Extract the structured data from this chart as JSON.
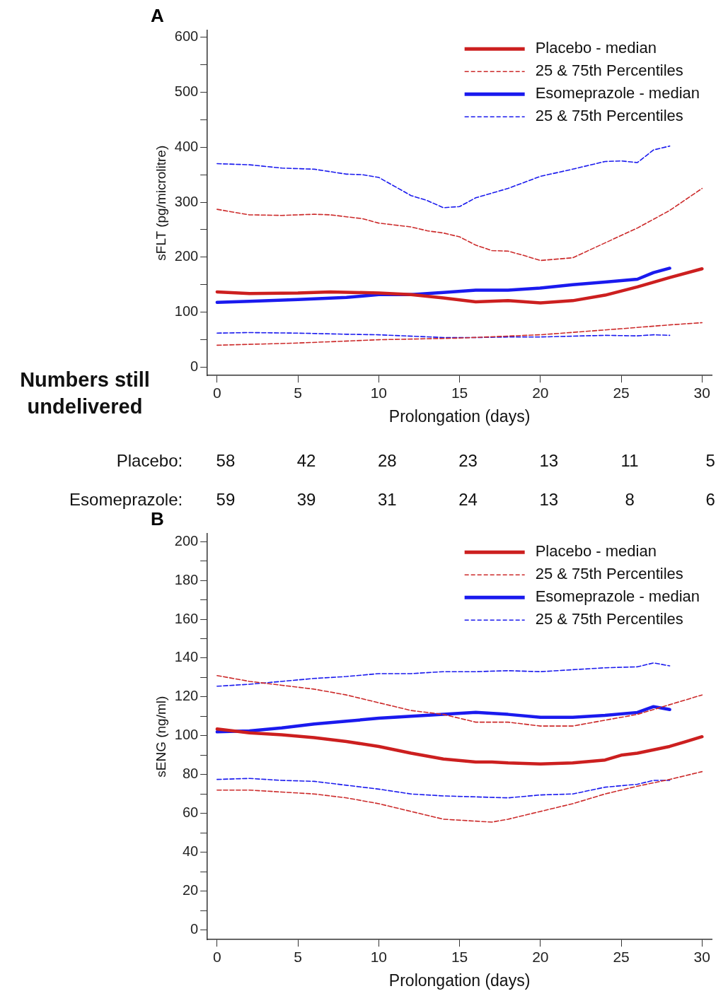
{
  "chart_data": [
    {
      "type": "line",
      "title": "A",
      "xlabel": "Prolongation (days)",
      "ylabel": "sFLT (pg/microlitre)",
      "xlim": [
        -0.6,
        30.6
      ],
      "ylim": [
        -15,
        612
      ],
      "xticks": [
        0,
        5,
        10,
        15,
        20,
        25,
        30
      ],
      "yticks": [
        0,
        {
          "value": 50,
          "label": null
        },
        100,
        {
          "value": 150,
          "label": null
        },
        200,
        {
          "value": 250,
          "label": null
        },
        300,
        {
          "value": 350,
          "label": null
        },
        400,
        {
          "value": 450,
          "label": null
        },
        500,
        {
          "value": 550,
          "label": null
        },
        600
      ],
      "grid": false,
      "legend": "top right",
      "marker": "none",
      "annotations": [
        "Numbers still undelivered",
        "Placebo:",
        "58",
        "42",
        "28",
        "23",
        "13",
        "11",
        "5",
        "Esomeprazole:",
        "59",
        "39",
        "31",
        "24",
        "13",
        "8",
        "6"
      ],
      "series": [
        {
          "name": "Placebo - median",
          "color": "#cc1f1f",
          "line_style": "solid",
          "x": [
            0,
            2,
            5,
            7,
            10,
            12,
            14,
            16,
            18,
            20,
            22,
            24,
            26,
            28,
            30
          ],
          "values": [
            137,
            134,
            135,
            137,
            135,
            132,
            126,
            119,
            121,
            117,
            121,
            131,
            146,
            163,
            179
          ]
        },
        {
          "name": "25 & 75th Percentiles",
          "color": "#cc2a2a",
          "line_style": "dashed",
          "x": [
            0,
            2,
            4,
            6,
            7,
            9,
            10,
            12,
            13,
            14,
            15,
            16,
            17,
            18,
            19,
            20,
            22,
            24,
            26,
            28,
            29,
            30
          ],
          "values": [
            287,
            277,
            276,
            278,
            277,
            270,
            262,
            255,
            248,
            244,
            237,
            222,
            212,
            211,
            203,
            194,
            199,
            226,
            253,
            285,
            305,
            325
          ]
        },
        {
          "color": "#cc2a2a",
          "line_style": "dashed",
          "x": [
            0,
            5,
            10,
            15,
            20,
            25,
            28,
            30
          ],
          "values": [
            40,
            44,
            50,
            53,
            59,
            70,
            77,
            81
          ]
        },
        {
          "name": "Esomeprazole - median",
          "color": "#1a1aee",
          "line_style": "solid",
          "x": [
            0,
            2,
            5,
            8,
            10,
            12,
            14,
            16,
            18,
            20,
            22,
            24,
            26,
            27,
            28
          ],
          "values": [
            118,
            120,
            123,
            127,
            132,
            132,
            136,
            140,
            140,
            144,
            150,
            155,
            160,
            172,
            180
          ]
        },
        {
          "name": "25 & 75th Percentiles",
          "color": "#1a1aee",
          "line_style": "dashed",
          "x": [
            0,
            2,
            4,
            6,
            8,
            9,
            10,
            12,
            13,
            14,
            15,
            16,
            18,
            20,
            22,
            24,
            25,
            26,
            27,
            28
          ],
          "values": [
            370,
            368,
            362,
            360,
            351,
            350,
            345,
            312,
            303,
            290,
            292,
            308,
            325,
            347,
            360,
            374,
            375,
            372,
            395,
            402
          ]
        },
        {
          "color": "#1a1aee",
          "line_style": "dashed",
          "x": [
            0,
            2,
            5,
            8,
            10,
            14,
            16,
            18,
            20,
            24,
            26,
            27,
            28
          ],
          "values": [
            62,
            63,
            62,
            60,
            59,
            54,
            54,
            55,
            55,
            58,
            57,
            59,
            58
          ]
        }
      ]
    },
    {
      "type": "line",
      "title": "B",
      "xlabel": "Prolongation (days)",
      "ylabel": "sENG (ng/ml)",
      "xlim": [
        -0.6,
        30.6
      ],
      "ylim": [
        -5,
        204
      ],
      "xticks": [
        0,
        5,
        10,
        15,
        20,
        25,
        30
      ],
      "yticks": [
        0,
        {
          "value": 10,
          "label": null
        },
        20,
        {
          "value": 30,
          "label": null
        },
        40,
        {
          "value": 50,
          "label": null
        },
        60,
        {
          "value": 70,
          "label": null
        },
        80,
        {
          "value": 90,
          "label": null
        },
        100,
        {
          "value": 110,
          "label": null
        },
        120,
        {
          "value": 130,
          "label": null
        },
        140,
        {
          "value": 150,
          "label": null
        },
        160,
        {
          "value": 170,
          "label": null
        },
        180,
        {
          "value": 190,
          "label": null
        },
        200
      ],
      "grid": false,
      "legend": "top right",
      "marker": "none",
      "series": [
        {
          "name": "Placebo - median",
          "color": "#cc1f1f",
          "line_style": "solid",
          "x": [
            0,
            2,
            4,
            6,
            8,
            10,
            12,
            14,
            16,
            17,
            18,
            20,
            22,
            24,
            25,
            26,
            28,
            29,
            30
          ],
          "values": [
            103.5,
            101.5,
            100.5,
            99,
            97,
            94.5,
            91,
            88,
            86.5,
            86.5,
            86,
            85.5,
            86,
            87.5,
            90,
            91,
            94.5,
            97,
            99.5
          ]
        },
        {
          "name": "25 & 75th Percentiles",
          "color": "#cc2a2a",
          "line_style": "dashed",
          "x": [
            0,
            2,
            4,
            6,
            8,
            10,
            12,
            14,
            16,
            18,
            20,
            22,
            24,
            26,
            28,
            30
          ],
          "values": [
            131,
            128,
            126,
            124,
            121,
            117,
            113,
            111,
            107,
            107,
            105,
            105,
            108,
            111,
            116,
            121
          ]
        },
        {
          "color": "#cc2a2a",
          "line_style": "dashed",
          "x": [
            0,
            2,
            4,
            6,
            8,
            10,
            12,
            14,
            16,
            17,
            18,
            20,
            22,
            24,
            26,
            28,
            30
          ],
          "values": [
            72,
            72,
            71,
            70,
            68,
            65,
            61,
            57,
            56,
            55.5,
            57,
            61,
            65,
            70,
            74,
            77.5,
            81.5
          ]
        },
        {
          "name": "Esomeprazole - median",
          "color": "#1a1aee",
          "line_style": "solid",
          "x": [
            0,
            2,
            4,
            6,
            8,
            10,
            12,
            14,
            16,
            18,
            20,
            22,
            24,
            26,
            27,
            28
          ],
          "values": [
            102,
            102.5,
            104,
            106,
            107.5,
            109,
            110,
            111,
            112,
            111,
            109.5,
            109.5,
            110.5,
            112,
            115,
            113.5
          ]
        },
        {
          "name": "25 & 75th Percentiles",
          "color": "#1a1aee",
          "line_style": "dashed",
          "x": [
            0,
            2,
            4,
            6,
            8,
            10,
            12,
            14,
            16,
            18,
            20,
            22,
            24,
            26,
            27,
            28
          ],
          "values": [
            125.5,
            126.5,
            128,
            129.5,
            130.5,
            132,
            132,
            133,
            133,
            133.5,
            133,
            134,
            135,
            135.5,
            137.5,
            136
          ]
        },
        {
          "color": "#1a1aee",
          "line_style": "dashed",
          "x": [
            0,
            2,
            4,
            6,
            8,
            10,
            12,
            14,
            16,
            18,
            20,
            22,
            24,
            26,
            27,
            28
          ],
          "values": [
            77.5,
            78,
            77,
            76.5,
            74.5,
            72.5,
            70,
            69,
            68.5,
            68,
            69.5,
            70,
            73.5,
            75,
            77,
            77
          ]
        }
      ]
    }
  ]
}
